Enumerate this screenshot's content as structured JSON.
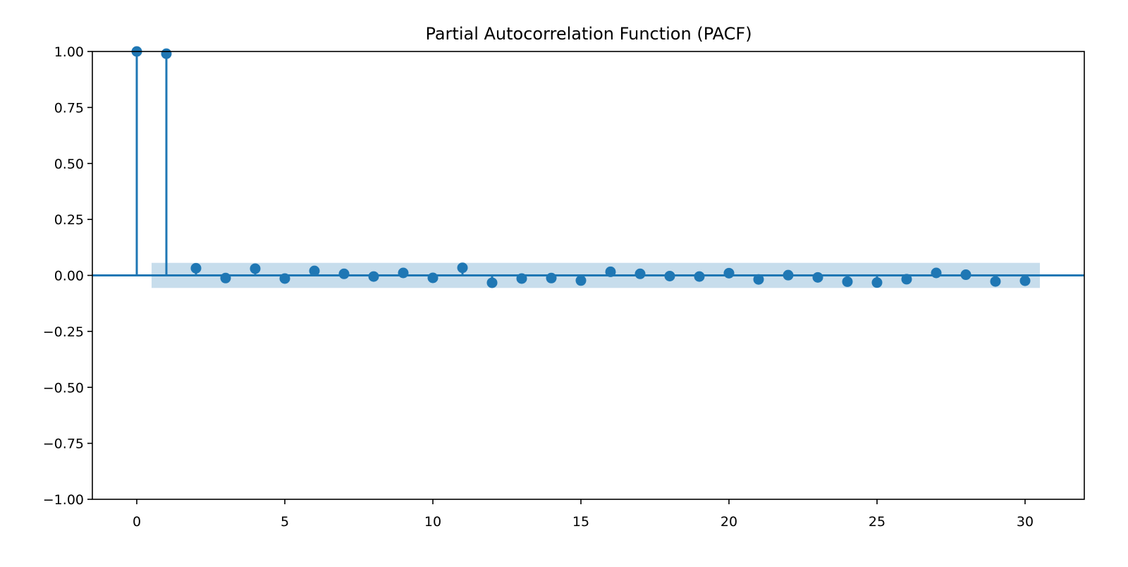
{
  "chart_data": {
    "type": "stem",
    "title": "Partial Autocorrelation Function (PACF)",
    "xlabel": "",
    "ylabel": "",
    "x": [
      0,
      1,
      2,
      3,
      4,
      5,
      6,
      7,
      8,
      9,
      10,
      11,
      12,
      13,
      14,
      15,
      16,
      17,
      18,
      19,
      20,
      21,
      22,
      23,
      24,
      25,
      26,
      27,
      28,
      29,
      30
    ],
    "values": [
      1.0,
      0.99,
      0.032,
      -0.012,
      0.03,
      -0.014,
      0.02,
      0.007,
      -0.005,
      0.011,
      -0.011,
      0.034,
      -0.033,
      -0.014,
      -0.012,
      -0.023,
      0.016,
      0.007,
      -0.003,
      -0.005,
      0.01,
      -0.018,
      0.001,
      -0.009,
      -0.028,
      -0.032,
      -0.017,
      0.011,
      0.003,
      -0.027,
      -0.024
    ],
    "confidence_band": {
      "x_start": 0.5,
      "x_end": 30.5,
      "lower": -0.056,
      "upper": 0.056
    },
    "xlim": [
      -1.5,
      32.0
    ],
    "ylim": [
      -1.0,
      1.0
    ],
    "x_ticks": [
      0,
      5,
      10,
      15,
      20,
      25,
      30
    ],
    "x_tick_labels": [
      "0",
      "5",
      "10",
      "15",
      "20",
      "25",
      "30"
    ],
    "y_ticks": [
      1.0,
      0.75,
      0.5,
      0.25,
      0.0,
      -0.25,
      -0.5,
      -0.75,
      -1.0
    ],
    "y_tick_labels": [
      "1.00",
      "0.75",
      "0.50",
      "0.25",
      "0.00",
      "−0.25",
      "−0.50",
      "−0.75",
      "−1.00"
    ],
    "grid": false,
    "colors": {
      "stem": "#1f77b4",
      "marker": "#1f77b4",
      "band": "#1f77b4",
      "zero_line": "#1f77b4",
      "axes": "#000000"
    }
  }
}
